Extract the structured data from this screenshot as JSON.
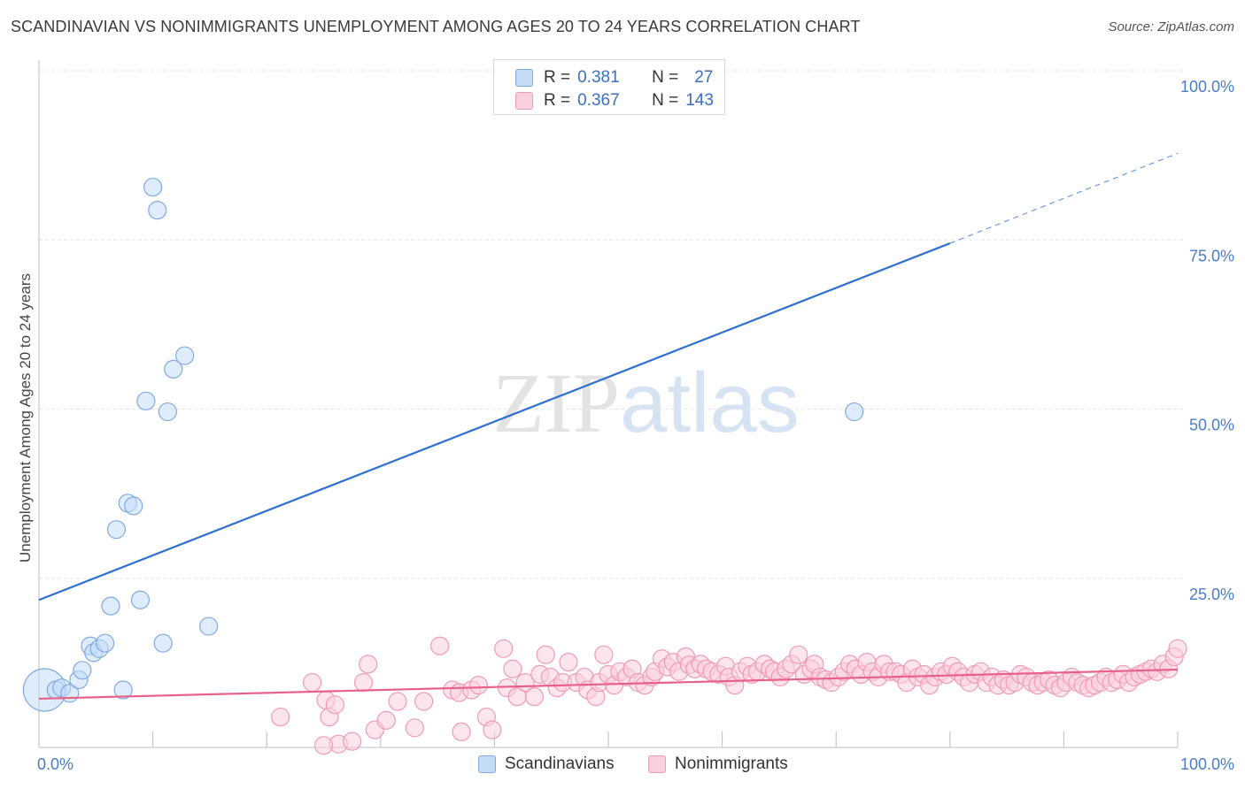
{
  "title": "SCANDINAVIAN VS NONIMMIGRANTS UNEMPLOYMENT AMONG AGES 20 TO 24 YEARS CORRELATION CHART",
  "source": "Source: ZipAtlas.com",
  "watermark": {
    "zip": "ZIP",
    "atlas": "atlas"
  },
  "legend": {
    "rows": [
      {
        "r_label": "R =",
        "r_value": "0.381",
        "n_label": "N =",
        "n_value": "27",
        "fill": "#c5dcf7",
        "stroke": "#7fa9e0"
      },
      {
        "r_label": "R =",
        "r_value": "0.367",
        "n_label": "N =",
        "n_value": "143",
        "fill": "#fbd0dd",
        "stroke": "#f09ab5"
      }
    ]
  },
  "bottom_legend": [
    {
      "label": "Scandinavians",
      "fill": "#c5dcf7",
      "stroke": "#7fa9e0"
    },
    {
      "label": "Nonimmigrants",
      "fill": "#fbd0dd",
      "stroke": "#f09ab5"
    }
  ],
  "chart_data": {
    "type": "scatter",
    "title": "SCANDINAVIAN VS NONIMMIGRANTS UNEMPLOYMENT AMONG AGES 20 TO 24 YEARS CORRELATION CHART",
    "xlabel": "",
    "ylabel": "Unemployment Among Ages 20 to 24 years",
    "xlim": [
      0,
      100
    ],
    "ylim": [
      0,
      100
    ],
    "x_tick_labels": [
      {
        "value": 0,
        "label": "0.0%"
      },
      {
        "value": 100,
        "label": "100.0%"
      }
    ],
    "y_tick_labels": [
      {
        "value": 25,
        "label": "25.0%"
      },
      {
        "value": 50,
        "label": "50.0%"
      },
      {
        "value": 75,
        "label": "75.0%"
      },
      {
        "value": 100,
        "label": "100.0%"
      }
    ],
    "series": [
      {
        "name": "Scandinavians",
        "color": "#7fa9e0",
        "fill": "#c5dcf7",
        "trend_color": "#2f6fd0",
        "trend": {
          "x0": 0,
          "y0": 21.8,
          "x1": 80,
          "y1": 74.5,
          "dashed_to_x": 100,
          "dashed_to_y": 87.8
        },
        "points": [
          [
            0.5,
            8.5,
            24
          ],
          [
            1.5,
            8.5,
            10
          ],
          [
            2.0,
            8.8,
            10
          ],
          [
            2.7,
            8.0,
            10
          ],
          [
            3.5,
            10.0,
            10
          ],
          [
            3.8,
            11.4,
            10
          ],
          [
            4.5,
            15.0,
            10
          ],
          [
            4.8,
            14.0,
            10
          ],
          [
            5.3,
            14.6,
            10
          ],
          [
            5.8,
            15.4,
            10
          ],
          [
            6.3,
            20.9,
            10
          ],
          [
            6.8,
            32.2,
            10
          ],
          [
            7.4,
            8.5,
            10
          ],
          [
            7.8,
            36.1,
            10
          ],
          [
            8.3,
            35.7,
            10
          ],
          [
            8.9,
            21.8,
            10
          ],
          [
            9.4,
            51.2,
            10
          ],
          [
            10.0,
            82.8,
            10
          ],
          [
            10.4,
            79.4,
            10
          ],
          [
            10.9,
            15.4,
            10
          ],
          [
            11.3,
            49.6,
            10
          ],
          [
            11.8,
            55.9,
            10
          ],
          [
            12.8,
            57.9,
            10
          ],
          [
            14.9,
            17.9,
            10
          ],
          [
            71.6,
            49.6,
            10
          ]
        ]
      },
      {
        "name": "Nonimmigrants",
        "color": "#f09ab5",
        "fill": "#fbd0dd",
        "trend_color": "#e8608a",
        "trend": {
          "x0": 0,
          "y0": 7.2,
          "x1": 100,
          "y1": 11.5
        },
        "points": [
          [
            21.2,
            4.5
          ],
          [
            24.0,
            9.6
          ],
          [
            25.2,
            7.0
          ],
          [
            25.5,
            4.5
          ],
          [
            26.0,
            6.3
          ],
          [
            26.3,
            0.5
          ],
          [
            27.5,
            0.9
          ],
          [
            28.5,
            9.6
          ],
          [
            28.9,
            12.3
          ],
          [
            29.5,
            2.6
          ],
          [
            30.5,
            4.0
          ],
          [
            31.5,
            6.8
          ],
          [
            33.0,
            2.9
          ],
          [
            33.8,
            6.8
          ],
          [
            35.2,
            15.0
          ],
          [
            36.3,
            8.5
          ],
          [
            36.9,
            8.1
          ],
          [
            37.1,
            2.3
          ],
          [
            38.0,
            8.5
          ],
          [
            38.6,
            9.2
          ],
          [
            39.3,
            4.5
          ],
          [
            39.8,
            2.6
          ],
          [
            40.8,
            14.6
          ],
          [
            41.1,
            8.8
          ],
          [
            41.6,
            11.6
          ],
          [
            42.0,
            7.5
          ],
          [
            42.7,
            9.6
          ],
          [
            43.5,
            7.5
          ],
          [
            44.0,
            10.8
          ],
          [
            44.5,
            13.7
          ],
          [
            44.9,
            10.4
          ],
          [
            45.5,
            8.8
          ],
          [
            46.0,
            9.6
          ],
          [
            46.5,
            12.6
          ],
          [
            47.2,
            9.6
          ],
          [
            47.9,
            10.4
          ],
          [
            48.2,
            8.5
          ],
          [
            48.9,
            7.5
          ],
          [
            49.2,
            9.6
          ],
          [
            49.6,
            13.7
          ],
          [
            50.0,
            10.8
          ],
          [
            50.5,
            9.2
          ],
          [
            51.0,
            11.2
          ],
          [
            51.6,
            10.4
          ],
          [
            52.1,
            11.6
          ],
          [
            52.6,
            9.6
          ],
          [
            53.2,
            9.2
          ],
          [
            53.8,
            10.4
          ],
          [
            54.1,
            11.2
          ],
          [
            54.7,
            13.1
          ],
          [
            55.2,
            11.9
          ],
          [
            55.7,
            12.6
          ],
          [
            56.2,
            11.2
          ],
          [
            56.8,
            13.4
          ],
          [
            57.1,
            12.2
          ],
          [
            57.6,
            11.6
          ],
          [
            58.1,
            12.3
          ],
          [
            58.6,
            11.6
          ],
          [
            59.1,
            11.2
          ],
          [
            59.7,
            10.8
          ],
          [
            60.3,
            12.0
          ],
          [
            60.6,
            10.4
          ],
          [
            61.1,
            9.2
          ],
          [
            61.6,
            11.2
          ],
          [
            62.2,
            12.0
          ],
          [
            62.6,
            10.8
          ],
          [
            63.1,
            11.2
          ],
          [
            63.7,
            12.3
          ],
          [
            64.2,
            11.6
          ],
          [
            64.6,
            11.2
          ],
          [
            65.1,
            10.4
          ],
          [
            65.6,
            11.6
          ],
          [
            66.1,
            12.3
          ],
          [
            66.7,
            13.7
          ],
          [
            67.2,
            10.8
          ],
          [
            67.8,
            11.6
          ],
          [
            68.1,
            12.3
          ],
          [
            68.6,
            10.4
          ],
          [
            69.1,
            10.0
          ],
          [
            69.6,
            9.6
          ],
          [
            70.2,
            10.4
          ],
          [
            70.7,
            11.2
          ],
          [
            71.2,
            12.3
          ],
          [
            71.7,
            11.6
          ],
          [
            72.2,
            10.8
          ],
          [
            72.7,
            12.6
          ],
          [
            73.2,
            11.2
          ],
          [
            73.7,
            10.4
          ],
          [
            74.2,
            12.3
          ],
          [
            74.7,
            11.2
          ],
          [
            75.2,
            11.2
          ],
          [
            75.7,
            10.8
          ],
          [
            76.2,
            9.6
          ],
          [
            76.7,
            11.6
          ],
          [
            77.2,
            10.4
          ],
          [
            77.7,
            10.8
          ],
          [
            78.2,
            9.2
          ],
          [
            78.7,
            10.4
          ],
          [
            79.2,
            11.2
          ],
          [
            79.7,
            10.8
          ],
          [
            80.2,
            12.0
          ],
          [
            80.7,
            11.2
          ],
          [
            81.2,
            10.4
          ],
          [
            81.7,
            9.6
          ],
          [
            82.2,
            10.8
          ],
          [
            82.7,
            11.2
          ],
          [
            83.2,
            9.6
          ],
          [
            83.7,
            10.4
          ],
          [
            84.2,
            9.2
          ],
          [
            84.7,
            10.0
          ],
          [
            85.2,
            9.2
          ],
          [
            85.7,
            9.6
          ],
          [
            86.2,
            10.8
          ],
          [
            86.7,
            10.4
          ],
          [
            87.2,
            9.6
          ],
          [
            87.7,
            9.2
          ],
          [
            88.2,
            9.6
          ],
          [
            88.7,
            10.0
          ],
          [
            89.2,
            9.2
          ],
          [
            89.7,
            8.8
          ],
          [
            90.2,
            9.6
          ],
          [
            90.7,
            10.4
          ],
          [
            91.2,
            9.6
          ],
          [
            91.7,
            9.2
          ],
          [
            92.2,
            8.8
          ],
          [
            92.7,
            9.2
          ],
          [
            93.2,
            9.6
          ],
          [
            93.7,
            10.4
          ],
          [
            94.2,
            9.6
          ],
          [
            94.7,
            10.0
          ],
          [
            95.2,
            10.8
          ],
          [
            95.7,
            9.6
          ],
          [
            96.2,
            10.4
          ],
          [
            96.7,
            10.8
          ],
          [
            97.2,
            11.2
          ],
          [
            97.7,
            11.6
          ],
          [
            98.2,
            11.2
          ],
          [
            98.7,
            12.3
          ],
          [
            99.2,
            11.6
          ],
          [
            99.7,
            13.4
          ],
          [
            100.0,
            14.6
          ],
          [
            25.0,
            0.3
          ]
        ]
      }
    ]
  }
}
